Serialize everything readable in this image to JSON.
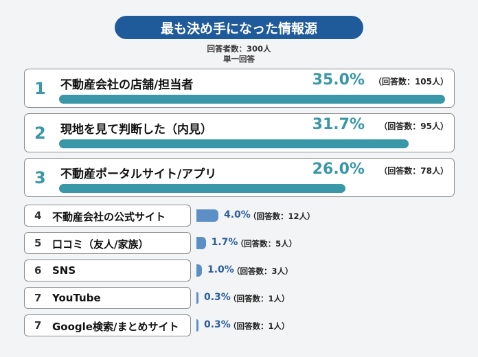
{
  "title": "最も決め手になった情報源",
  "respondents": "回答者数：300人",
  "answer_type": "単一回答",
  "colors": {
    "title_bg": "#1f5a9a",
    "top_accent": "#3a97a8",
    "other_bar": "#5b8fc6",
    "other_pct": "#2e5f99"
  },
  "chart_data": {
    "type": "bar",
    "orientation": "horizontal",
    "title": "最も決め手になった情報源",
    "categories": [
      "不動産会社の店舗/担当者",
      "現地を見て判断した（内見）",
      "不動産ポータルサイト/アプリ",
      "不動産会社の公式サイト",
      "口コミ（友人/家族）",
      "SNS",
      "YouTube",
      "Google検索/まとめサイト"
    ],
    "ranks": [
      "1",
      "2",
      "3",
      "4",
      "5",
      "6",
      "7",
      "7"
    ],
    "values": [
      35.0,
      31.7,
      26.0,
      4.0,
      1.7,
      1.0,
      0.3,
      0.3
    ],
    "value_labels": [
      "35.0%",
      "31.7%",
      "26.0%",
      "4.0%",
      "1.7%",
      "1.0%",
      "0.3%",
      "0.3%"
    ],
    "count_labels": [
      "（回答数：105人）",
      "（回答数：95人）",
      "（回答数：78人）",
      "（回答数：12人）",
      "（回答数：5人）",
      "（回答数：3人）",
      "（回答数：1人）",
      "（回答数：1人）"
    ],
    "counts": [
      105,
      95,
      78,
      12,
      5,
      3,
      1,
      1
    ]
  }
}
